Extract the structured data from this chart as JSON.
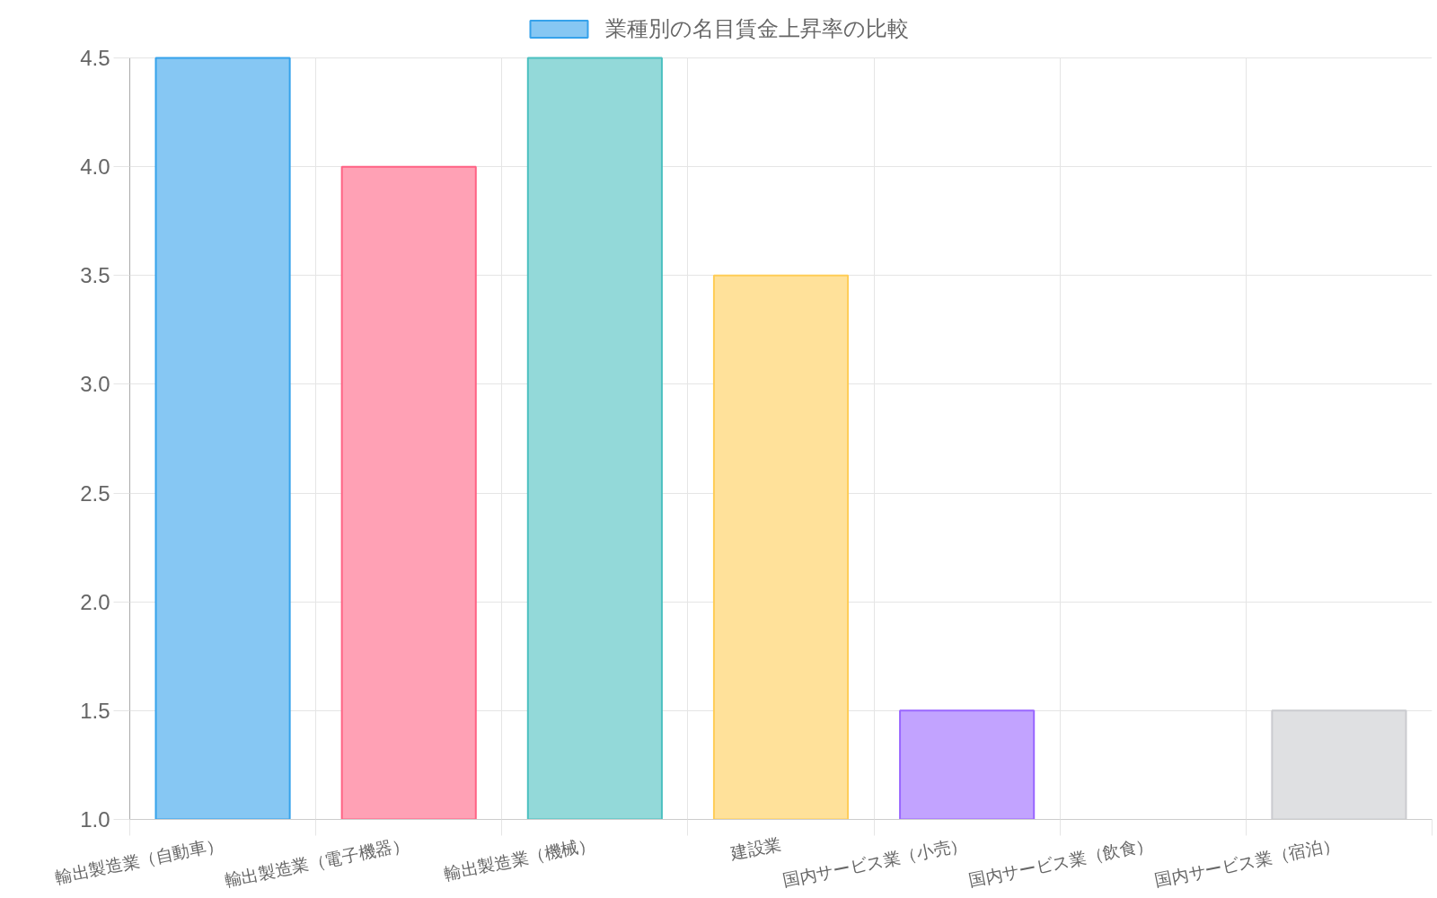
{
  "chart_data": {
    "type": "bar",
    "categories": [
      "輸出製造業（自動車）",
      "輸出製造業（電子機器）",
      "輸出製造業（機械）",
      "建設業",
      "国内サービス業（小売）",
      "国内サービス業（飲食）",
      "国内サービス業（宿泊）"
    ],
    "series": [
      {
        "name": "業種別の名目賃金上昇率の比較",
        "colors": [
          "#86c7f3",
          "#ffa1b5",
          "#93d9d9",
          "#ffe19a",
          "#c2a3ff",
          null,
          "#dfe0e2"
        ],
        "values": [
          4.5,
          4.0,
          4.5,
          3.5,
          1.5,
          null,
          1.5
        ]
      }
    ],
    "ylim": [
      1.0,
      4.5
    ],
    "yticks": [
      {
        "value": 1.0,
        "label": "1.0"
      },
      1.5,
      {
        "value": 2.0,
        "label": "2.0"
      },
      2.5,
      {
        "value": 3.0,
        "label": "3.0"
      },
      3.5,
      {
        "value": 4.0,
        "label": "4.0"
      },
      4.5
    ],
    "grid": true,
    "legend": "top"
  }
}
